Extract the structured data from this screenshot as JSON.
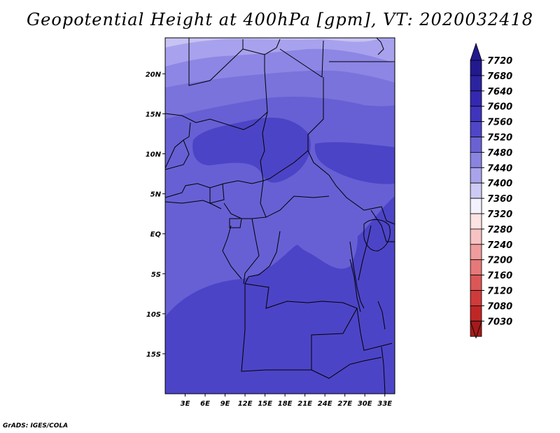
{
  "title": "Geopotential Height at 400hPa [gpm], VT: 2020032418",
  "credit": "GrADS: IGES/COLA",
  "map": {
    "lat_range": [
      -20,
      24.5
    ],
    "lon_range": [
      0,
      34.5
    ],
    "lat_ticks": [
      {
        "value": 20,
        "label": "20N"
      },
      {
        "value": 15,
        "label": "15N"
      },
      {
        "value": 10,
        "label": "10N"
      },
      {
        "value": 5,
        "label": "5N"
      },
      {
        "value": 0,
        "label": "EQ"
      },
      {
        "value": -5,
        "label": "5S"
      },
      {
        "value": -10,
        "label": "10S"
      },
      {
        "value": -15,
        "label": "15S"
      }
    ],
    "lon_ticks": [
      {
        "value": 3,
        "label": "3E"
      },
      {
        "value": 6,
        "label": "6E"
      },
      {
        "value": 9,
        "label": "9E"
      },
      {
        "value": 12,
        "label": "12E"
      },
      {
        "value": 15,
        "label": "15E"
      },
      {
        "value": 18,
        "label": "18E"
      },
      {
        "value": 21,
        "label": "21E"
      },
      {
        "value": 24,
        "label": "24E"
      },
      {
        "value": 27,
        "label": "27E"
      },
      {
        "value": 30,
        "label": "30E"
      },
      {
        "value": 33,
        "label": "33E"
      }
    ]
  },
  "colorbar": {
    "levels": [
      "7720",
      "7680",
      "7640",
      "7600",
      "7560",
      "7520",
      "7480",
      "7440",
      "7400",
      "7360",
      "7320",
      "7280",
      "7240",
      "7200",
      "7160",
      "7120",
      "7080",
      "7030"
    ],
    "colors": [
      "#22198f",
      "#2b23a0",
      "#3428b0",
      "#3e34bd",
      "#4e46c6",
      "#6a62d2",
      "#8a84e0",
      "#a9a4ea",
      "#cdcaf3",
      "#f3f2fc",
      "#fde3e3",
      "#f8c2c2",
      "#f09c9c",
      "#e57878",
      "#db5656",
      "#cf3a3a",
      "#c02626",
      "#a51a1a"
    ]
  },
  "field_colors": {
    "c7440": "#c7c3f3",
    "c7480": "#a8a2ee",
    "c7520": "#8d86e4",
    "c7560": "#7a73db",
    "c7600": "#6760d4",
    "c7640": "#4c44c6"
  }
}
